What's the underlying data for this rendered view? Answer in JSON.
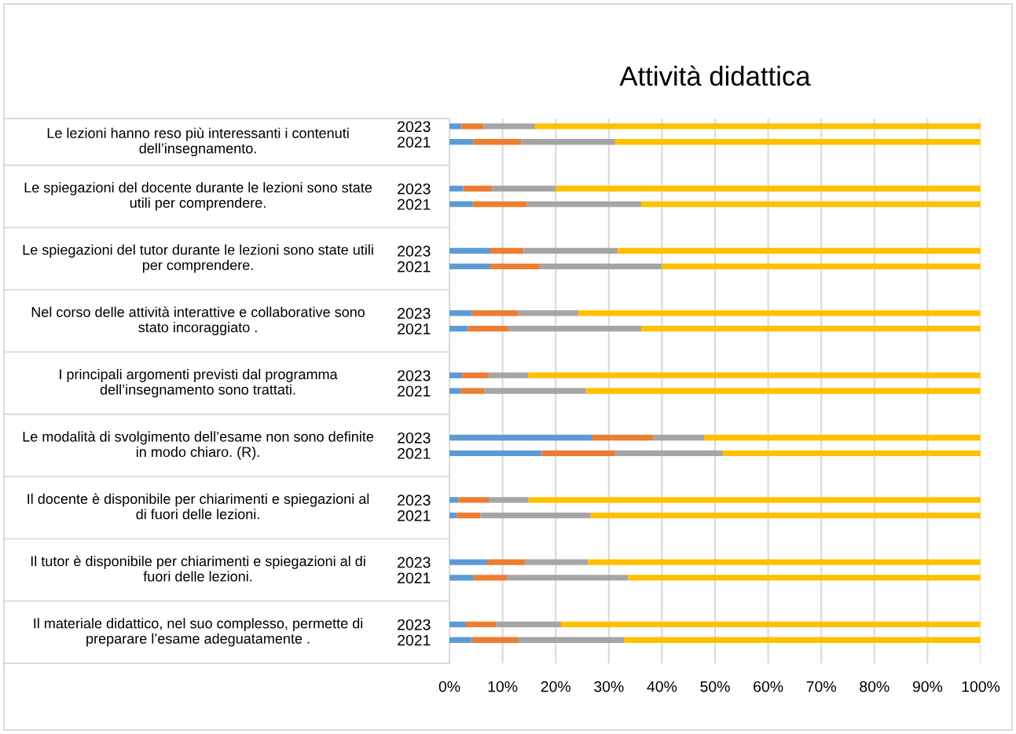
{
  "chart_data": {
    "type": "bar",
    "orientation": "horizontal",
    "stacked": true,
    "title": "Attività didattica",
    "categories": [
      "2023",
      "2021",
      null,
      null,
      "2023",
      "2021",
      null,
      null,
      "2023",
      "2021",
      null,
      null,
      "2023",
      "2021",
      null,
      null,
      "2023",
      "2021",
      null,
      null,
      "2023",
      "2021",
      null,
      null,
      "2023",
      "2021",
      null,
      null,
      "2023",
      "2021",
      null,
      null,
      "2023",
      "2021",
      null
    ],
    "series": [
      {
        "color": "#5b9bd5",
        "values": [
          2.3,
          4.5,
          null,
          null,
          2.6,
          4.4,
          null,
          null,
          7.7,
          7.7,
          null,
          null,
          4.2,
          3.5,
          null,
          null,
          2.4,
          2.1,
          null,
          null,
          26.9,
          17.4,
          null,
          null,
          1.7,
          1.3,
          null,
          null,
          7.1,
          4.6,
          null,
          null,
          3.1,
          4.2,
          null
        ]
      },
      {
        "color": "#ed7d31",
        "values": [
          4.1,
          9.0,
          null,
          null,
          5.4,
          10.2,
          null,
          null,
          6.3,
          9.3,
          null,
          null,
          8.8,
          7.6,
          null,
          null,
          5.0,
          4.5,
          null,
          null,
          11.4,
          13.8,
          null,
          null,
          5.7,
          4.5,
          null,
          null,
          7.2,
          6.2,
          null,
          null,
          5.7,
          8.8,
          null
        ]
      },
      {
        "color": "#a5a5a5",
        "values": [
          9.7,
          17.7,
          null,
          null,
          12.0,
          21.5,
          null,
          null,
          17.7,
          23.0,
          null,
          null,
          11.3,
          25.0,
          null,
          null,
          7.4,
          19.1,
          null,
          null,
          9.7,
          20.3,
          null,
          null,
          7.5,
          20.8,
          null,
          null,
          11.8,
          22.8,
          null,
          null,
          12.2,
          19.9,
          null
        ]
      },
      {
        "color": "#ffc000",
        "values": [
          83.9,
          68.8,
          null,
          null,
          80.0,
          63.9,
          null,
          null,
          68.3,
          60.0,
          null,
          null,
          75.7,
          63.9,
          null,
          null,
          85.2,
          74.3,
          null,
          null,
          52.0,
          48.5,
          null,
          null,
          85.1,
          73.4,
          null,
          null,
          73.9,
          66.4,
          null,
          null,
          79.0,
          67.1,
          null
        ]
      }
    ],
    "xlim": [
      0,
      100
    ],
    "xticks": [
      {
        "value": 0,
        "label": "0%"
      },
      {
        "value": 10,
        "label": "10%"
      },
      {
        "value": 20,
        "label": "20%"
      },
      {
        "value": 30,
        "label": "30%"
      },
      {
        "value": 40,
        "label": "40%"
      },
      {
        "value": 50,
        "label": "50%"
      },
      {
        "value": 60,
        "label": "60%"
      },
      {
        "value": 70,
        "label": "70%"
      },
      {
        "value": 80,
        "label": "80%"
      },
      {
        "value": 90,
        "label": "90%"
      },
      {
        "value": 100,
        "label": "100%"
      }
    ],
    "grid": "x",
    "annotations": [
      "Le lezioni hanno reso più interessanti i contenuti dell’insegnamento.",
      "Le spiegazioni del docente durante le lezioni sono state utili per comprendere.",
      "Le spiegazioni del tutor durante le lezioni sono state utili per comprendere.",
      "Nel corso delle attività interattive e collaborative sono stato incoraggiato .",
      "I principali argomenti previsti dal programma dell’insegnamento sono trattati.",
      "Le modalità di svolgimento dell’esame non sono definite in modo chiaro. (R).",
      "Il docente è disponibile per chiarimenti e spiegazioni al di fuori delle lezioni.",
      "Il tutor è disponibile per chiarimenti e spiegazioni al di fuori delle lezioni.",
      "Il materiale didattico, nel suo complesso, permette di preparare l’esame adeguatamente ."
    ]
  }
}
